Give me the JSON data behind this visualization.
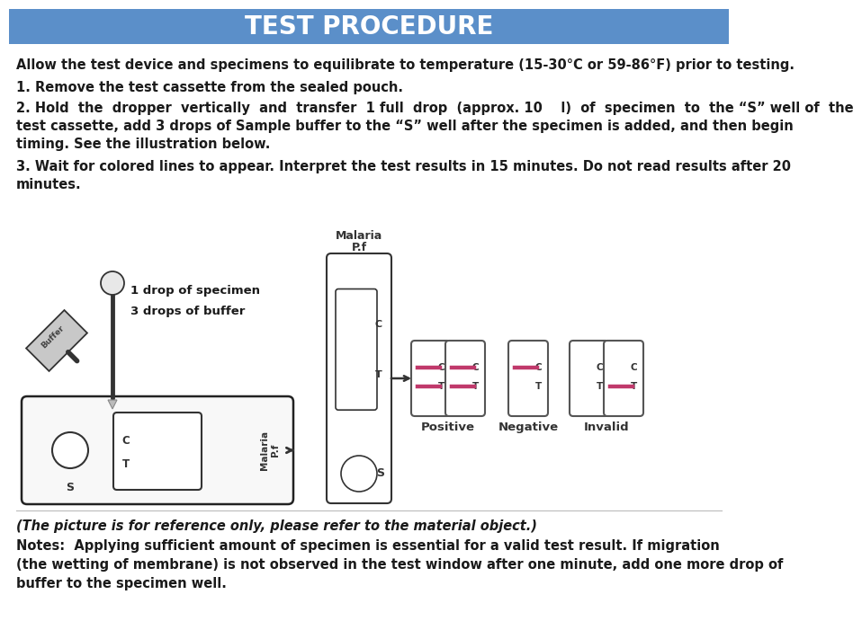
{
  "title": "TEST PROCEDURE",
  "title_bg": "#5b8fc9",
  "title_color": "#ffffff",
  "bg_color": "#ffffff",
  "text_color": "#1a1a1a",
  "line0": "Allow the test device and specimens to equilibrate to temperature (15-30°C or 59-86°F) prior to testing.",
  "line1": "1. Remove the test cassette from the sealed pouch.",
  "line2a": "2. Hold  the  dropper  vertically  and  transfer  1 full  drop  (approx. 10    l)  of  specimen  to  the “S” well of  the",
  "line2b": "test cassette, add 3 drops of Sample buffer to the “S” well after the specimen is added, and then begin",
  "line2c": "timing. See the illustration below.",
  "line3a": "3. Wait for colored lines to appear. Interpret the test results in 15 minutes. Do not read results after 20",
  "line3b": "minutes.",
  "note1": "(The picture is for reference only, please refer to the material object.)",
  "note2": "Notes:  Applying sufficient amount of specimen is essential for a valid test result. If migration",
  "note3": "(the wetting of membrane) is not observed in the test window after one minute, add one more drop of",
  "note4": "buffer to the specimen well.",
  "label_drop1": "1 drop of specimen",
  "label_drop2": "3 drops of buffer",
  "label_malaria": "Malaria",
  "label_pf": "P.f",
  "label_positive": "Positive",
  "label_negative": "Negative",
  "label_invalid": "Invalid",
  "pink_color": "#c0396b",
  "cassette_outline": "#333333",
  "font_size_body": 10.5,
  "title_font_size": 20
}
